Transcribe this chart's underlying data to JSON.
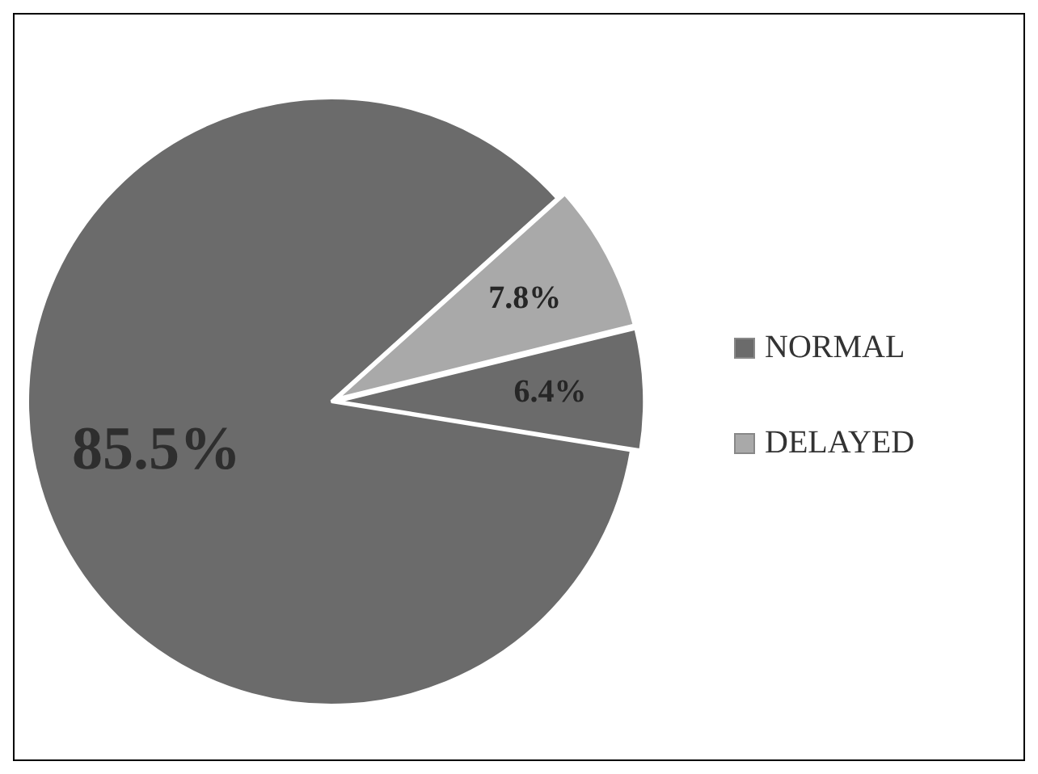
{
  "chart_data": {
    "type": "pie",
    "categories": [
      "NORMAL",
      "DELAYED",
      null
    ],
    "values": [
      85.5,
      7.8,
      6.4
    ],
    "colors": [
      "#6b6b6b",
      "#a9a9a9",
      "#6b6b6b"
    ],
    "value_labels": [
      "85.5%",
      "7.8%",
      "6.4%"
    ],
    "legend": "right"
  }
}
